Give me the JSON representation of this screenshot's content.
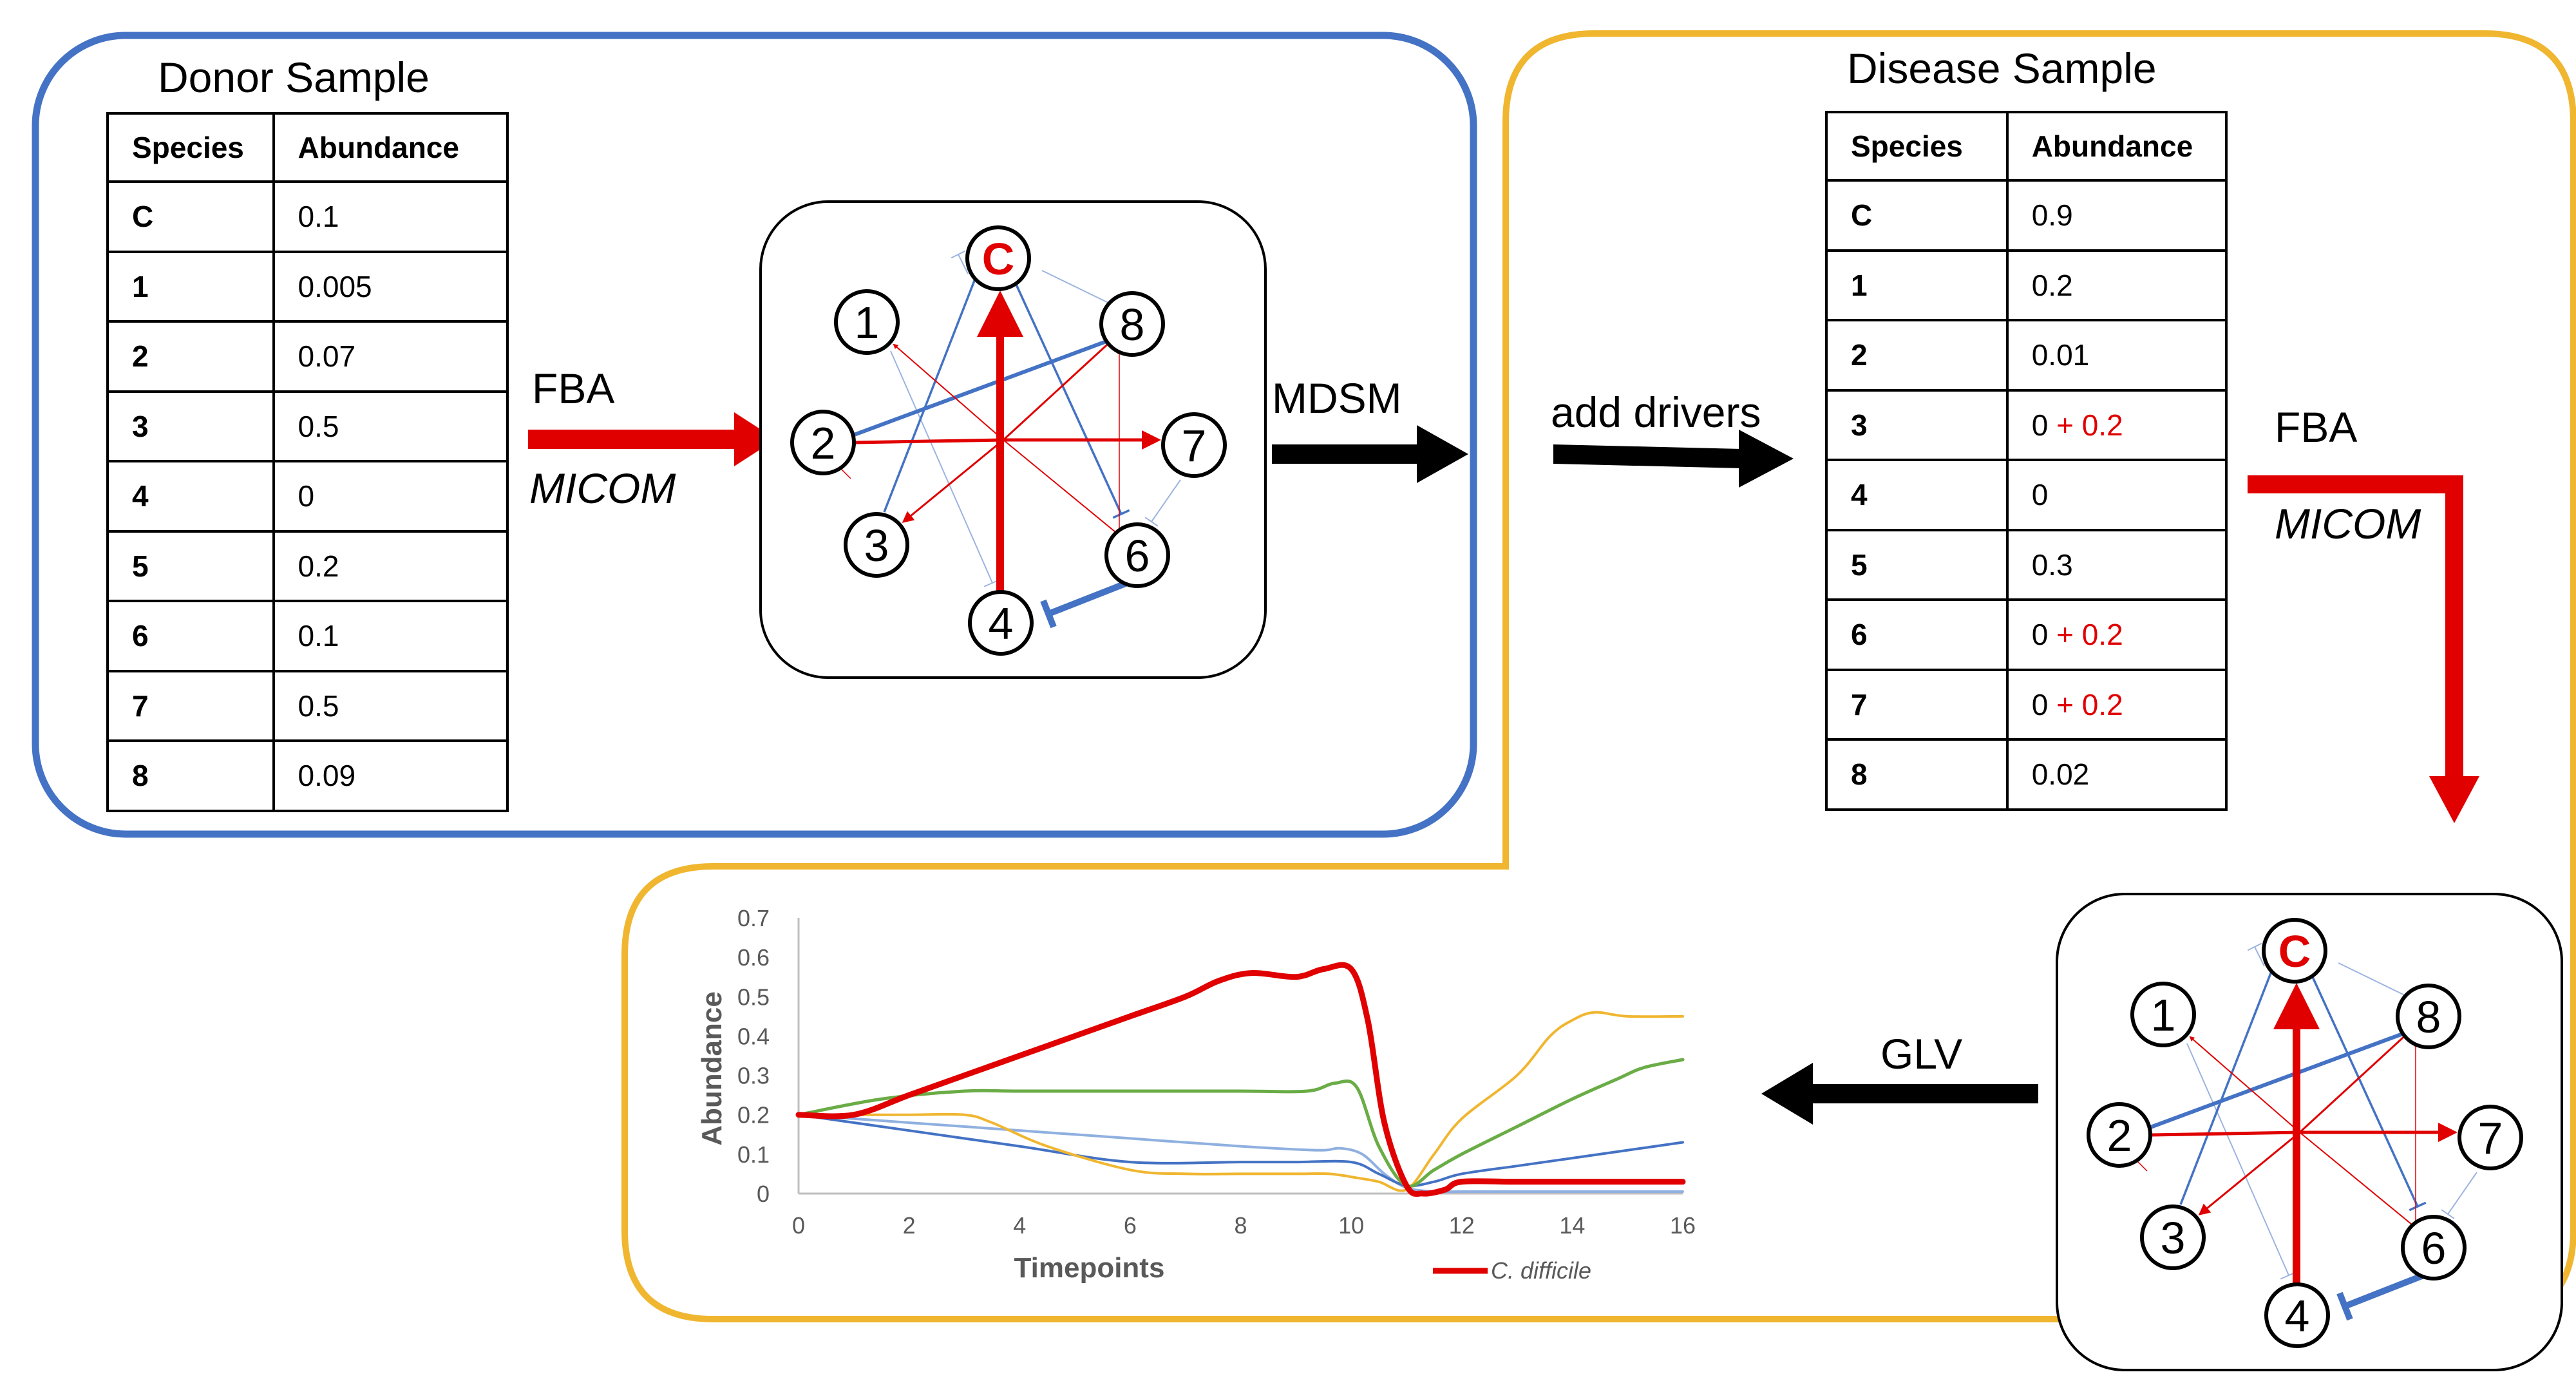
{
  "colors": {
    "donor_frame": "#4472c4",
    "disease_frame": "#f0b630",
    "red": "#e00000",
    "blue": "#4472c4",
    "green": "#6aac46",
    "orange": "#f0b630",
    "lightblue": "#6f9ad8",
    "black": "#000000"
  },
  "donor": {
    "title": "Donor Sample",
    "headers": [
      "Species",
      "Abundance"
    ],
    "rows": [
      {
        "species": "C",
        "abundance": "0.1"
      },
      {
        "species": "1",
        "abundance": "0.005"
      },
      {
        "species": "2",
        "abundance": "0.07"
      },
      {
        "species": "3",
        "abundance": "0.5"
      },
      {
        "species": "4",
        "abundance": "0"
      },
      {
        "species": "5",
        "abundance": "0.2"
      },
      {
        "species": "6",
        "abundance": "0.1"
      },
      {
        "species": "7",
        "abundance": "0.5"
      },
      {
        "species": "8",
        "abundance": "0.09"
      }
    ]
  },
  "disease": {
    "title": "Disease Sample",
    "headers": [
      "Species",
      "Abundance"
    ],
    "rows": [
      {
        "species": "C",
        "abundance": "0.9",
        "added": ""
      },
      {
        "species": "1",
        "abundance": "0.2",
        "added": ""
      },
      {
        "species": "2",
        "abundance": "0.01",
        "added": ""
      },
      {
        "species": "3",
        "abundance": "0",
        "added": "+ 0.2"
      },
      {
        "species": "4",
        "abundance": "0",
        "added": ""
      },
      {
        "species": "5",
        "abundance": "0.3",
        "added": ""
      },
      {
        "species": "6",
        "abundance": "0",
        "added": "+ 0.2"
      },
      {
        "species": "7",
        "abundance": "0",
        "added": "+ 0.2"
      },
      {
        "species": "8",
        "abundance": "0.02",
        "added": ""
      }
    ]
  },
  "arrows": {
    "fba_1": "FBA",
    "micom_1": "MICOM",
    "mdsm": "MDSM",
    "add_drivers": "add drivers",
    "fba_2": "FBA",
    "micom_2": "MICOM",
    "glv": "GLV"
  },
  "network": {
    "nodes": [
      "C",
      "1",
      "8",
      "2",
      "7",
      "3",
      "6",
      "4"
    ]
  },
  "chart_data": {
    "type": "line",
    "xlabel": "Timepoints",
    "ylabel": "Abundance",
    "xlim": [
      0,
      16
    ],
    "ylim": [
      0,
      0.7
    ],
    "xticks": [
      0,
      2,
      4,
      6,
      8,
      10,
      12,
      14,
      16
    ],
    "yticks": [
      0,
      0.1,
      0.2,
      0.3,
      0.4,
      0.5,
      0.6,
      0.7
    ],
    "legend": [
      "C. difficile"
    ],
    "legend_position": "bottom-right",
    "grid": false,
    "series": [
      {
        "name": "C. difficile",
        "color": "#e00000",
        "width": 9,
        "x": [
          0,
          1,
          2,
          3,
          4,
          5,
          6,
          7,
          7.6,
          8.2,
          9,
          9.5,
          10,
          10.3,
          10.6,
          11,
          11.3,
          11.7,
          12,
          13,
          14,
          15,
          16
        ],
        "y": [
          0.2,
          0.2,
          0.25,
          0.3,
          0.35,
          0.4,
          0.45,
          0.5,
          0.54,
          0.56,
          0.55,
          0.57,
          0.57,
          0.44,
          0.18,
          0.02,
          0.0,
          0.01,
          0.03,
          0.03,
          0.03,
          0.03,
          0.03
        ]
      },
      {
        "color": "#6aac46",
        "width": 5,
        "x": [
          0,
          1.5,
          3,
          4,
          6,
          8,
          9.2,
          9.7,
          10.1,
          10.5,
          11,
          11.5,
          12,
          13,
          14,
          14.8,
          15.3,
          16
        ],
        "y": [
          0.2,
          0.24,
          0.26,
          0.26,
          0.26,
          0.26,
          0.26,
          0.28,
          0.27,
          0.12,
          0.02,
          0.06,
          0.1,
          0.17,
          0.24,
          0.29,
          0.32,
          0.34
        ]
      },
      {
        "color": "#f0b630",
        "width": 4,
        "x": [
          0,
          1,
          2,
          3,
          3.5,
          4.5,
          6,
          7,
          8,
          9,
          9.6,
          10.1,
          10.5,
          11,
          11.5,
          12,
          13,
          13.6,
          14,
          14.4,
          15,
          16
        ],
        "y": [
          0.2,
          0.2,
          0.2,
          0.2,
          0.18,
          0.12,
          0.06,
          0.05,
          0.05,
          0.05,
          0.05,
          0.04,
          0.03,
          0.01,
          0.1,
          0.19,
          0.3,
          0.4,
          0.44,
          0.46,
          0.45,
          0.45
        ]
      },
      {
        "color": "#4472c4",
        "width": 4,
        "x": [
          0,
          2,
          4,
          6,
          8,
          9,
          10,
          10.5,
          11,
          11.5,
          12,
          13,
          14,
          15,
          16
        ],
        "y": [
          0.2,
          0.16,
          0.12,
          0.08,
          0.08,
          0.08,
          0.08,
          0.05,
          0.02,
          0.03,
          0.05,
          0.07,
          0.09,
          0.11,
          0.13
        ]
      },
      {
        "color": "#8fb0e0",
        "width": 4,
        "x": [
          0,
          2,
          4,
          6,
          8,
          9.4,
          9.8,
          10.2,
          10.6,
          11,
          11.5,
          12,
          14,
          16
        ],
        "y": [
          0.2,
          0.18,
          0.16,
          0.14,
          0.12,
          0.11,
          0.115,
          0.1,
          0.05,
          0.015,
          0.005,
          0.005,
          0.005,
          0.005
        ]
      }
    ]
  }
}
